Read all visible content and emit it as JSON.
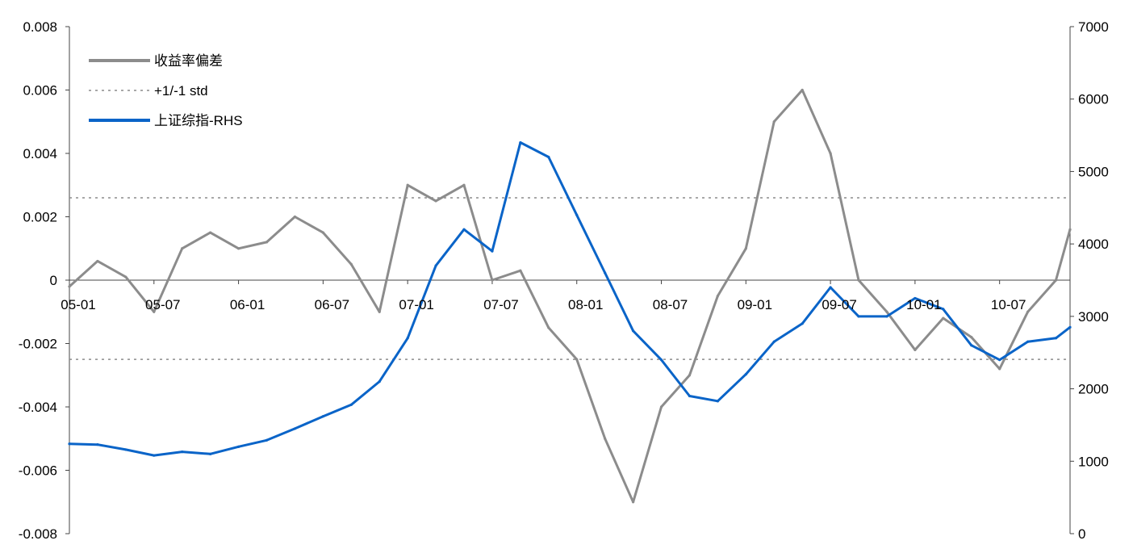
{
  "chart_data": {
    "type": "line",
    "title": "",
    "xlabel": "",
    "ylabel": "",
    "ylabel_right": "",
    "grid": false,
    "legend_position": "top-left",
    "x_ticks": [
      "05-01",
      "05-07",
      "06-01",
      "06-07",
      "07-01",
      "07-07",
      "08-01",
      "08-07",
      "09-01",
      "09-07",
      "10-01",
      "10-07"
    ],
    "y_left": {
      "min": -0.008,
      "max": 0.008,
      "ticks": [
        "-0.008",
        "-0.006",
        "-0.004",
        "-0.002",
        "0",
        "0.002",
        "0.004",
        "0.006",
        "0.008"
      ]
    },
    "y_right": {
      "min": 0,
      "max": 7000,
      "ticks": [
        "0",
        "1000",
        "2000",
        "3000",
        "4000",
        "5000",
        "6000",
        "7000"
      ]
    },
    "std_band": {
      "name": "+1/-1 std",
      "upper": 0.0026,
      "lower": -0.0025,
      "color": "#8c8c8c",
      "style": "dotted"
    },
    "series": [
      {
        "name": "收益率偏差",
        "axis": "left",
        "color": "#8c8c8c",
        "x": [
          "05-01",
          "05-03",
          "05-05",
          "05-07",
          "05-09",
          "05-11",
          "06-01",
          "06-03",
          "06-05",
          "06-07",
          "06-09",
          "06-11",
          "07-01",
          "07-03",
          "07-05",
          "07-07",
          "07-09",
          "07-11",
          "08-01",
          "08-03",
          "08-05",
          "08-07",
          "08-09",
          "08-11",
          "09-01",
          "09-03",
          "09-05",
          "09-07",
          "09-09",
          "09-11",
          "10-01",
          "10-03",
          "10-05",
          "10-07",
          "10-09",
          "10-11",
          "10-12"
        ],
        "values": [
          -0.0002,
          0.0006,
          0.0001,
          -0.001,
          0.001,
          0.0015,
          0.001,
          0.0012,
          0.002,
          0.0015,
          0.0005,
          -0.001,
          0.003,
          0.0025,
          0.003,
          0.0,
          0.0003,
          -0.0015,
          -0.0025,
          -0.005,
          -0.007,
          -0.004,
          -0.003,
          -0.0005,
          0.001,
          0.005,
          0.006,
          0.004,
          0.0,
          -0.001,
          -0.0022,
          -0.0012,
          -0.0018,
          -0.0028,
          -0.001,
          0.0,
          0.0016
        ]
      },
      {
        "name": "上证综指-RHS",
        "axis": "right",
        "color": "#0a64c8",
        "x": [
          "05-01",
          "05-03",
          "05-05",
          "05-07",
          "05-09",
          "05-11",
          "06-01",
          "06-03",
          "06-05",
          "06-07",
          "06-09",
          "06-11",
          "07-01",
          "07-03",
          "07-05",
          "07-07",
          "07-09",
          "07-11",
          "08-01",
          "08-03",
          "08-05",
          "08-07",
          "08-09",
          "08-11",
          "09-01",
          "09-03",
          "09-05",
          "09-07",
          "09-09",
          "09-11",
          "10-01",
          "10-03",
          "10-05",
          "10-07",
          "10-09",
          "10-11",
          "10-12"
        ],
        "values": [
          1240,
          1230,
          1160,
          1080,
          1130,
          1100,
          1200,
          1290,
          1450,
          1620,
          1780,
          2100,
          2700,
          3700,
          4200,
          3900,
          5400,
          5200,
          4400,
          3600,
          2800,
          2400,
          1900,
          1830,
          2200,
          2650,
          2900,
          3400,
          3000,
          3000,
          3250,
          3100,
          2600,
          2400,
          2650,
          2700,
          2850
        ]
      }
    ]
  }
}
